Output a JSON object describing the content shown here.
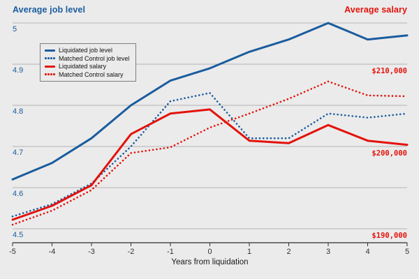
{
  "chart_data": {
    "type": "line",
    "xlabel": "Years from liquidation",
    "x": [
      -5,
      -4,
      -3,
      -2,
      -1,
      0,
      1,
      2,
      3,
      4,
      5
    ],
    "x_tick_labels": [
      "-5",
      "-4",
      "-3",
      "-2",
      "-1",
      "0",
      "1",
      "2",
      "3",
      "4",
      "5"
    ],
    "grid": "horizontal",
    "background_color": "#ebebeb",
    "gridline_color": "#b3b3b3",
    "axis_line_color": "#2e2e2e",
    "left_axis": {
      "label": "Average job level",
      "color": "#1a5c9e",
      "range": [
        4.5,
        5.0
      ],
      "ticks": [
        5,
        4.9,
        4.8,
        4.7,
        4.6,
        4.5
      ],
      "tick_labels": [
        "5",
        "4.9",
        "4.8",
        "4.7",
        "4.6",
        "4.5"
      ]
    },
    "right_axis": {
      "label": "Average salary",
      "color": "#e3120b",
      "ticks": [
        210000,
        200000,
        190000
      ],
      "tick_labels": [
        "$210,000",
        "$200,000",
        "$190,000"
      ],
      "aligned_left_levels": [
        4.9,
        4.7,
        4.5
      ],
      "scale_note": "salary = 190000 + (job_level - 4.5) * 50000"
    },
    "legend": {
      "position": "top-left",
      "items": [
        "Liquidated job level",
        "Matched Control job level",
        "Liquidated salary",
        "Matched Control salary"
      ]
    },
    "series": [
      {
        "name": "Liquidated job level",
        "axis": "left",
        "line_style": "solid",
        "color": "#1a5c9e",
        "values": [
          4.62,
          4.66,
          4.72,
          4.8,
          4.86,
          4.89,
          4.93,
          4.96,
          5.0,
          4.96,
          4.97
        ]
      },
      {
        "name": "Matched Control job level",
        "axis": "left",
        "line_style": "dotted",
        "color": "#1a5c9e",
        "values": [
          4.53,
          4.56,
          4.61,
          4.7,
          4.81,
          4.83,
          4.72,
          4.72,
          4.78,
          4.77,
          4.78
        ]
      },
      {
        "name": "Liquidated salary",
        "axis": "right",
        "line_style": "solid",
        "color": "#e3120b",
        "values": [
          191100,
          192800,
          195300,
          201500,
          204000,
          204500,
          200700,
          200400,
          202600,
          200700,
          200200
        ]
      },
      {
        "name": "Matched Control salary",
        "axis": "right",
        "line_style": "dotted",
        "color": "#e3120b",
        "values": [
          190500,
          192200,
          194700,
          199200,
          199900,
          202300,
          204000,
          205800,
          207900,
          206200,
          206100
        ]
      }
    ]
  }
}
